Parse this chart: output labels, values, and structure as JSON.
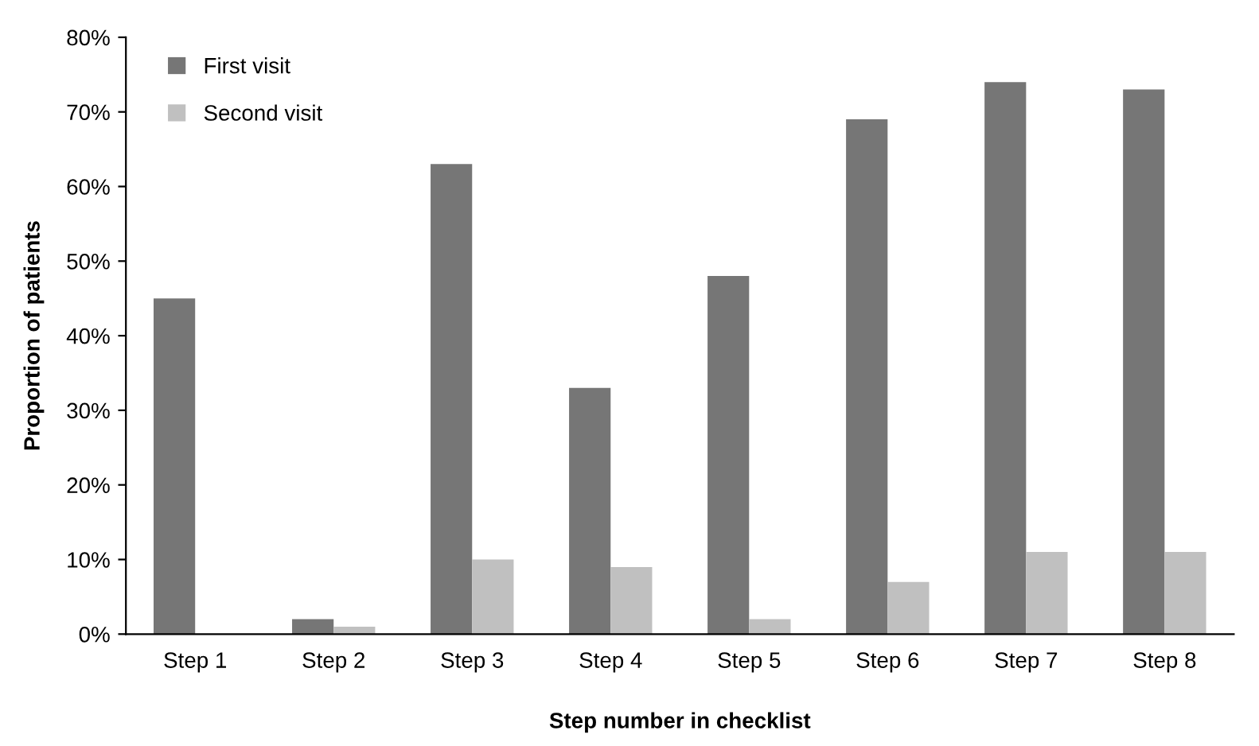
{
  "chart_data": {
    "type": "bar",
    "xlabel": "Step number in checklist",
    "ylabel": "Proportion of patients",
    "categories": [
      "Step 1",
      "Step 2",
      "Step 3",
      "Step 4",
      "Step 5",
      "Step 6",
      "Step 7",
      "Step 8"
    ],
    "series": [
      {
        "name": "First visit",
        "color": "#767676",
        "values": [
          45,
          2,
          63,
          33,
          48,
          69,
          74,
          73
        ]
      },
      {
        "name": "Second visit",
        "color": "#c0c0c0",
        "values": [
          0,
          1,
          10,
          9,
          2,
          7,
          11,
          11
        ]
      }
    ],
    "ylim": [
      0,
      80
    ],
    "yticks": [
      {
        "value": 0,
        "label": "0%"
      },
      {
        "value": 10,
        "label": "10%"
      },
      {
        "value": 20,
        "label": "20%"
      },
      {
        "value": 30,
        "label": "30%"
      },
      {
        "value": 40,
        "label": "40%"
      },
      {
        "value": 50,
        "label": "50%"
      },
      {
        "value": 60,
        "label": "60%"
      },
      {
        "value": 70,
        "label": "70%"
      },
      {
        "value": 80,
        "label": "80%"
      }
    ],
    "grid": false,
    "legend": "top left"
  }
}
